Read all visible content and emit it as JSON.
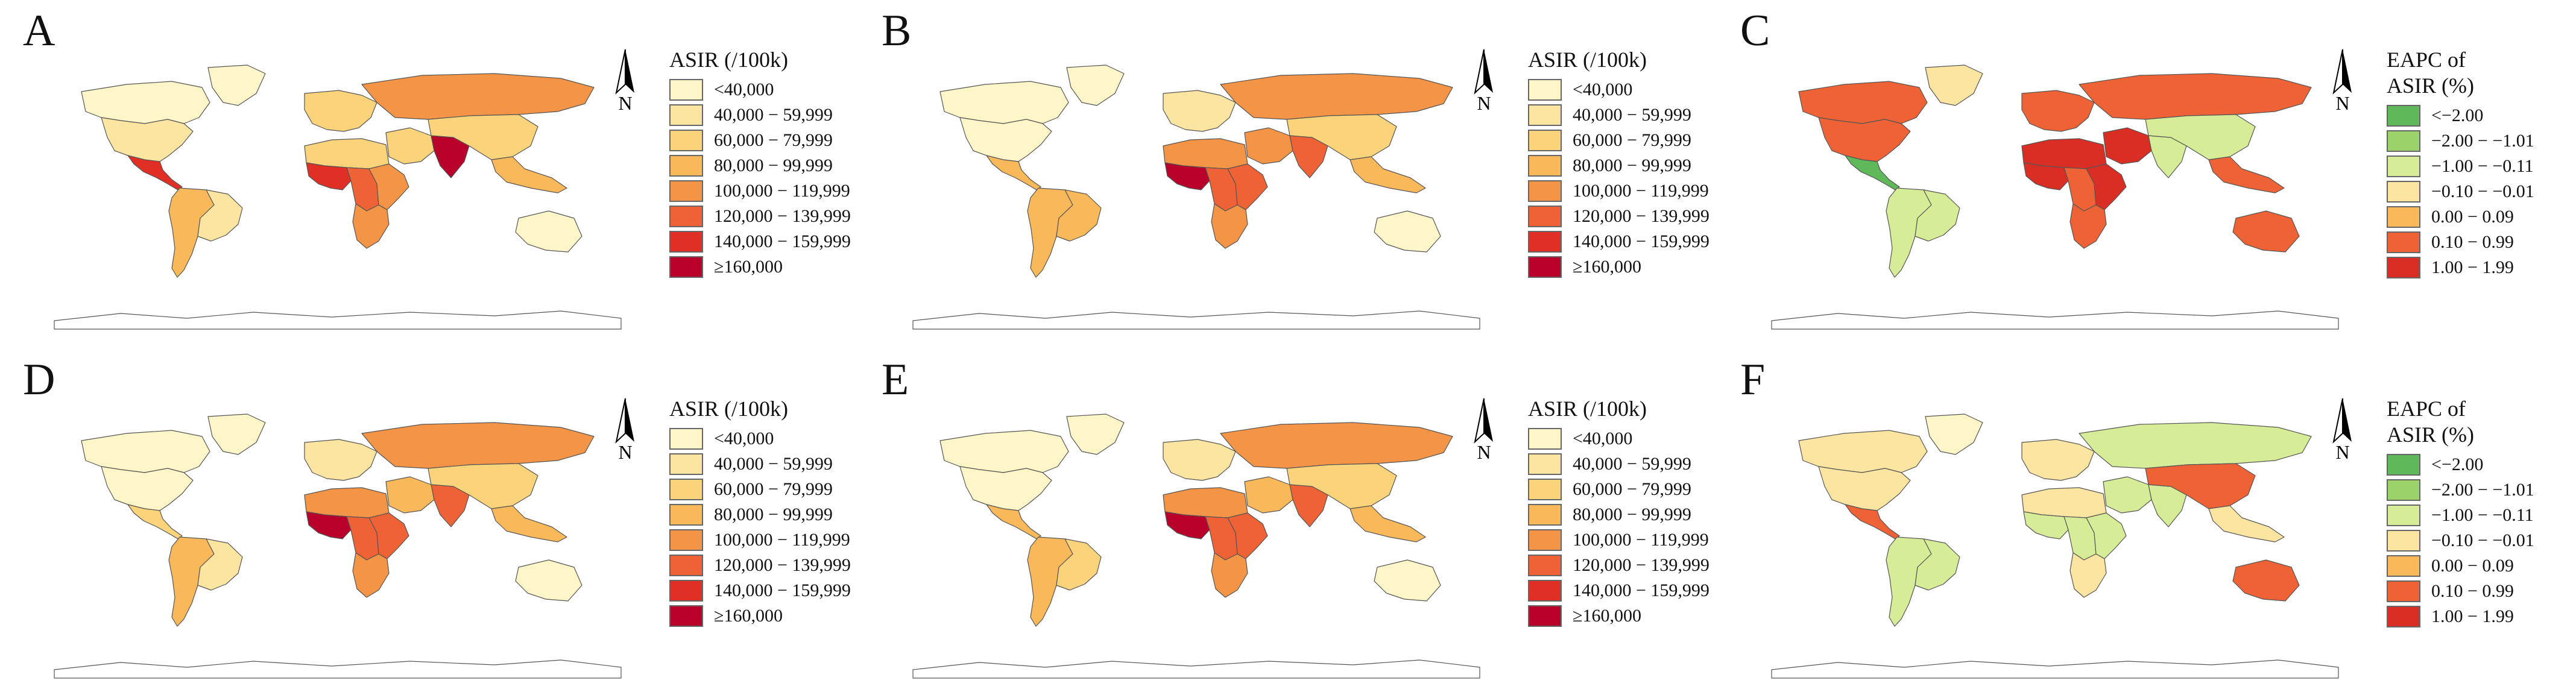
{
  "panels": [
    {
      "letter": "A",
      "legend_title": [
        "ASIR (/100k)"
      ],
      "legend": "asir"
    },
    {
      "letter": "B",
      "legend_title": [
        "ASIR (/100k)"
      ],
      "legend": "asir"
    },
    {
      "letter": "C",
      "legend_title": [
        "EAPC of",
        "ASIR (%)"
      ],
      "legend": "eapc"
    },
    {
      "letter": "D",
      "legend_title": [
        "ASIR (/100k)"
      ],
      "legend": "asir"
    },
    {
      "letter": "E",
      "legend_title": [
        "ASIR (/100k)"
      ],
      "legend": "asir"
    },
    {
      "letter": "F",
      "legend_title": [
        "EAPC of",
        "ASIR (%)"
      ],
      "legend": "eapc"
    }
  ],
  "legends": {
    "asir": [
      {
        "label": "<40,000",
        "color": "#FEF5C8"
      },
      {
        "label": "40,000 − 59,999",
        "color": "#FCE5A0"
      },
      {
        "label": "60,000 − 79,999",
        "color": "#FBD37A"
      },
      {
        "label": "80,000 − 99,999",
        "color": "#F9B95A"
      },
      {
        "label": "100,000 − 119,999",
        "color": "#F39446"
      },
      {
        "label": "120,000 − 139,999",
        "color": "#EE6235"
      },
      {
        "label": "140,000 − 159,999",
        "color": "#E22F25"
      },
      {
        "label": "≥160,000",
        "color": "#B8002A"
      }
    ],
    "eapc": [
      {
        "label": "<−2.00",
        "color": "#5FB85A"
      },
      {
        "label": "−2.00 − −1.01",
        "color": "#9BD36A"
      },
      {
        "label": "−1.00 − −0.11",
        "color": "#D6EC96"
      },
      {
        "label": "−0.10 − −0.01",
        "color": "#FCE5A0"
      },
      {
        "label": "0.00 − 0.09",
        "color": "#F9B95A"
      },
      {
        "label": "0.10 − 0.99",
        "color": "#EE6235"
      },
      {
        "label": "1.00 − 1.99",
        "color": "#DA2E25"
      }
    ]
  },
  "maps": [
    {
      "north_america": "#FCE5A0",
      "canada": "#FEF5C8",
      "greenland": "#FEF5C8",
      "central_america": "#E22F25",
      "south_america": "#F9B95A",
      "brazil": "#FCE5A0",
      "europe": "#FBD37A",
      "russia": "#F39446",
      "west_africa": "#E22F25",
      "central_africa": "#EE6235",
      "east_africa": "#F39446",
      "north_africa": "#FBD37A",
      "southern_africa": "#F39446",
      "middle_east": "#FBD37A",
      "india": "#B8002A",
      "china": "#FBD37A",
      "southeast_asia": "#F9B95A",
      "australia": "#FEF5C8",
      "antarctica": "#ffffff"
    },
    {
      "north_america": "#FEF5C8",
      "canada": "#FEF5C8",
      "greenland": "#FEF5C8",
      "central_america": "#F9B95A",
      "south_america": "#F9B95A",
      "brazil": "#F9B95A",
      "europe": "#FCE5A0",
      "russia": "#F39446",
      "west_africa": "#B8002A",
      "central_africa": "#EE6235",
      "east_africa": "#EE6235",
      "north_africa": "#F39446",
      "southern_africa": "#F39446",
      "middle_east": "#F39446",
      "india": "#EE6235",
      "china": "#FBD37A",
      "southeast_asia": "#F9B95A",
      "australia": "#FEF5C8",
      "antarctica": "#ffffff"
    },
    {
      "north_america": "#EE6235",
      "canada": "#EE6235",
      "greenland": "#FCE5A0",
      "central_america": "#5FB85A",
      "south_america": "#D6EC96",
      "brazil": "#D6EC96",
      "europe": "#EE6235",
      "russia": "#EE6235",
      "west_africa": "#DA2E25",
      "central_africa": "#EE6235",
      "east_africa": "#DA2E25",
      "north_africa": "#DA2E25",
      "southern_africa": "#EE6235",
      "middle_east": "#DA2E25",
      "india": "#D6EC96",
      "china": "#D6EC96",
      "southeast_asia": "#EE6235",
      "australia": "#EE6235",
      "antarctica": "#ffffff"
    },
    {
      "north_america": "#FEF5C8",
      "canada": "#FEF5C8",
      "greenland": "#FEF5C8",
      "central_america": "#FBD37A",
      "south_america": "#F9B95A",
      "brazil": "#FCE5A0",
      "europe": "#FCE5A0",
      "russia": "#F39446",
      "west_africa": "#B8002A",
      "central_africa": "#EE6235",
      "east_africa": "#EE6235",
      "north_africa": "#F39446",
      "southern_africa": "#F39446",
      "middle_east": "#F9B95A",
      "india": "#EE6235",
      "china": "#FBD37A",
      "southeast_asia": "#F9B95A",
      "australia": "#FEF5C8",
      "antarctica": "#ffffff"
    },
    {
      "north_america": "#FEF5C8",
      "canada": "#FEF5C8",
      "greenland": "#FEF5C8",
      "central_america": "#F9B95A",
      "south_america": "#F9B95A",
      "brazil": "#FBD37A",
      "europe": "#FCE5A0",
      "russia": "#F39446",
      "west_africa": "#B8002A",
      "central_africa": "#EE6235",
      "east_africa": "#EE6235",
      "north_africa": "#F39446",
      "southern_africa": "#F39446",
      "middle_east": "#F9B95A",
      "india": "#EE6235",
      "china": "#FBD37A",
      "southeast_asia": "#F9B95A",
      "australia": "#FEF5C8",
      "antarctica": "#ffffff"
    },
    {
      "north_america": "#FCE5A0",
      "canada": "#FCE5A0",
      "greenland": "#FEF5C8",
      "central_america": "#EE6235",
      "south_america": "#D6EC96",
      "brazil": "#D6EC96",
      "europe": "#FCE5A0",
      "russia": "#D6EC96",
      "west_africa": "#D6EC96",
      "central_africa": "#D6EC96",
      "east_africa": "#D6EC96",
      "north_africa": "#FCE5A0",
      "southern_africa": "#FCE5A0",
      "middle_east": "#D6EC96",
      "india": "#D6EC96",
      "china": "#EE6235",
      "southeast_asia": "#FCE5A0",
      "australia": "#EE6235",
      "antarctica": "#ffffff"
    }
  ]
}
